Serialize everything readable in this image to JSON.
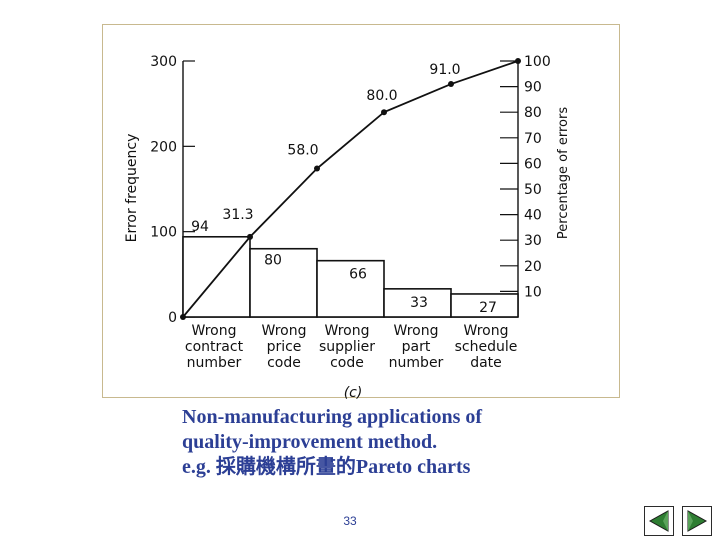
{
  "chart_data": {
    "type": "pareto",
    "categories": [
      "Wrong\ncontract\nnumber",
      "Wrong\nprice\ncode",
      "Wrong\nsupplier\ncode",
      "Wrong\npart\nnumber",
      "Wrong\nschedule\ndate"
    ],
    "bar_values": [
      94,
      80,
      66,
      33,
      27
    ],
    "bar_labels": [
      "94",
      "80",
      "66",
      "33",
      "27"
    ],
    "cumulative_percent": [
      31.3,
      58.0,
      80.0,
      91.0,
      100
    ],
    "cumulative_labels": [
      "31.3",
      "58.0",
      "80.0",
      "91.0"
    ],
    "ylabel_left": "Error frequency",
    "ylabel_right": "Percentage of errors",
    "left_ticks": [
      "0",
      "100",
      "200",
      "300"
    ],
    "left_ylim": [
      0,
      300
    ],
    "right_ticks": [
      "10",
      "20",
      "30",
      "40",
      "50",
      "60",
      "70",
      "80",
      "90",
      "100"
    ],
    "right_ylim": [
      0,
      100
    ],
    "panel_label": "(c)",
    "colors": {
      "bar_fill": "#ffffff",
      "line": "#111111",
      "frame": "#c8b98f"
    }
  },
  "caption": {
    "line1": "Non-manufacturing applications of",
    "line2": "quality-improvement method.",
    "line3": "e.g. 採購機構所畫的Pareto charts"
  },
  "page_number": "33",
  "nav": {
    "back_icon": "back-triangle-icon",
    "forward_icon": "forward-triangle-icon",
    "accent": "#2e7d32"
  }
}
